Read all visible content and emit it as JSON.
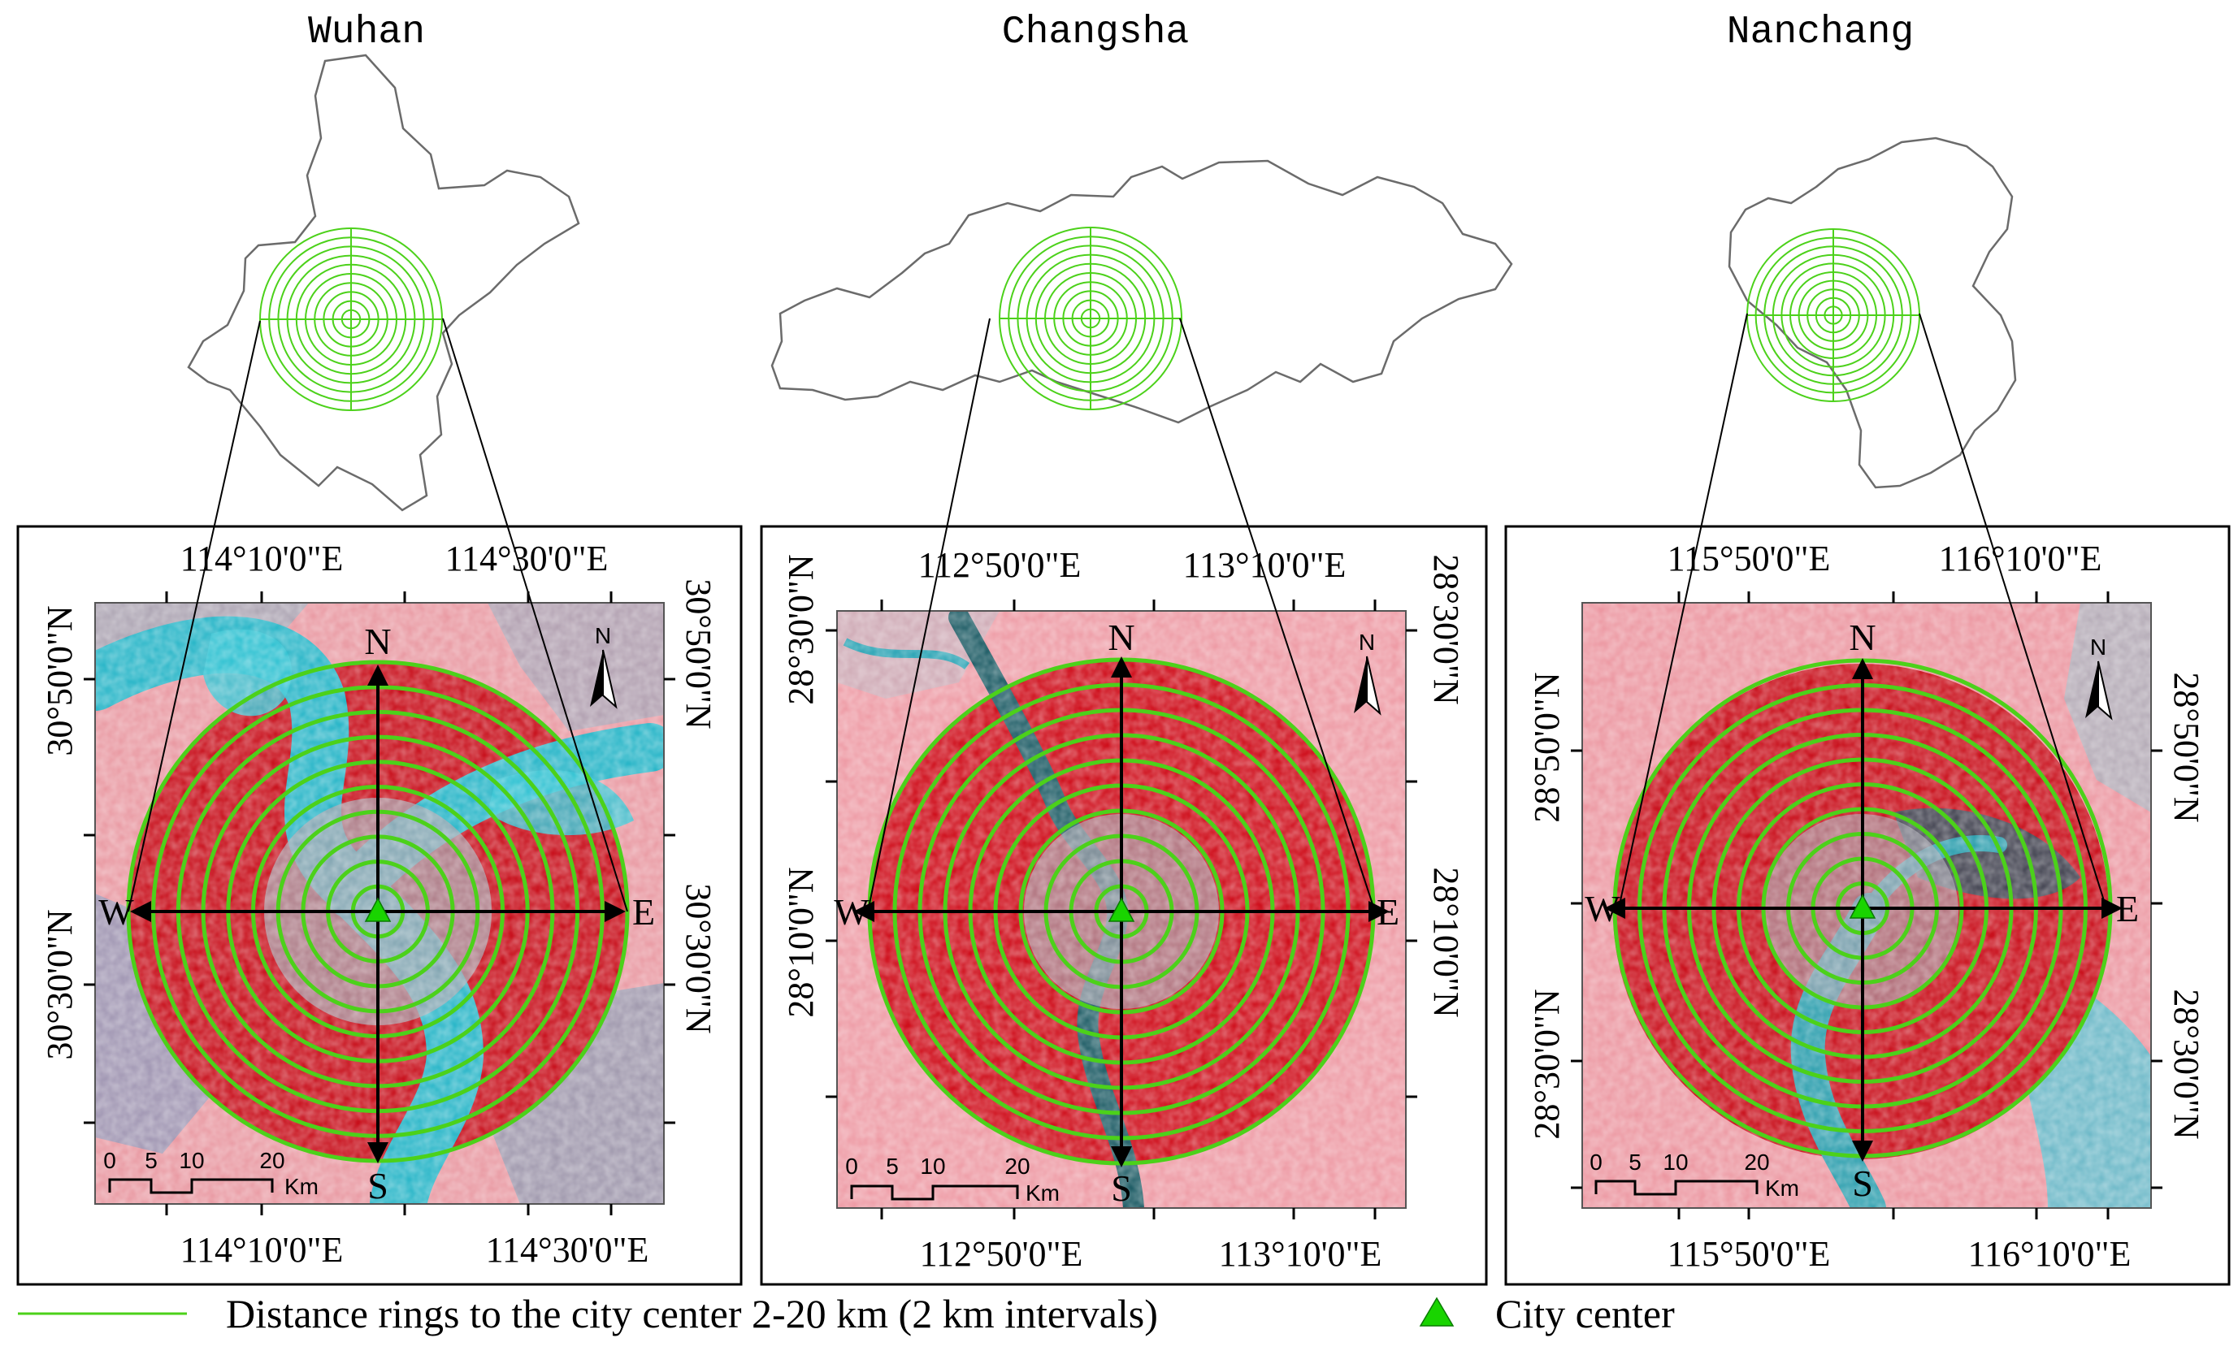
{
  "figure": {
    "panels": [
      {
        "city": "Wuhan",
        "lon_labels": [
          "114°10'0\"E",
          "114°30'0\"E"
        ],
        "lat_labels": [
          "30°50'0\"N",
          "30°30'0\"N"
        ],
        "lat_labels_right": [
          "30°50'0\"N",
          "30°30'0\"N"
        ]
      },
      {
        "city": "Changsha",
        "lon_labels": [
          "112°50'0\"E",
          "113°10'0\"E"
        ],
        "lat_labels": [
          "28°30'0\"N",
          "28°10'0\"N"
        ],
        "lat_labels_right": [
          "28°30'0\"N",
          "28°10'0\"N"
        ]
      },
      {
        "city": "Nanchang",
        "lon_labels": [
          "115°50'0\"E",
          "116°10'0\"E"
        ],
        "lat_labels": [
          "28°50'0\"N",
          "28°30'0\"N"
        ],
        "lat_labels_right": [
          "28°50'0\"N",
          "28°30'0\"N"
        ]
      }
    ],
    "directions": {
      "n": "N",
      "s": "S",
      "e": "E",
      "w": "W"
    },
    "north_arrow_label": "N",
    "scale_bar": {
      "ticks": [
        "0",
        "5",
        "10",
        "20"
      ],
      "unit": "Km"
    },
    "rings": {
      "min_km": 2,
      "max_km": 20,
      "interval_km": 2
    },
    "legend": {
      "rings_label": "Distance rings to the city center 2-20 km (2 km intervals)",
      "center_label": "City center"
    },
    "colors": {
      "ring": "#4cd11a",
      "center": "#19d400",
      "boundary": "#6b6b6b",
      "imagery_base": "#ec9aa3",
      "vegetation": "#d9101c",
      "water": "#2fb3c6"
    }
  }
}
